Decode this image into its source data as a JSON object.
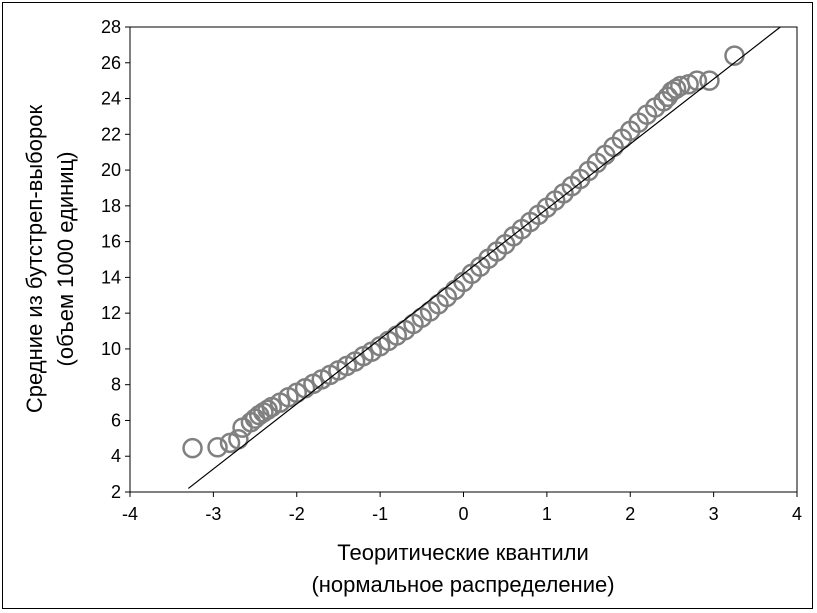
{
  "chart_data": {
    "type": "scatter",
    "title": "",
    "xlabel_lines": [
      "Теоритические квантили",
      "(нормальное распределение)"
    ],
    "ylabel_lines": [
      "Средние из бутстреп-выборок",
      "(объем 1000 единиц)"
    ],
    "xlim": [
      -4,
      4
    ],
    "ylim": [
      2,
      28
    ],
    "x_ticks": [
      -4,
      -3,
      -2,
      -1,
      0,
      1,
      2,
      3,
      4
    ],
    "y_ticks": [
      2,
      4,
      6,
      8,
      10,
      12,
      14,
      16,
      18,
      20,
      22,
      24,
      26,
      28
    ],
    "grid": false,
    "reference_line": {
      "x": [
        -3.3,
        3.8
      ],
      "y": [
        2.2,
        28
      ]
    },
    "series": [
      {
        "marker": "open-circle",
        "color": "#808080",
        "points": [
          [
            -3.25,
            4.45
          ],
          [
            -2.95,
            4.5
          ],
          [
            -2.8,
            4.75
          ],
          [
            -2.7,
            4.95
          ],
          [
            -2.65,
            5.6
          ],
          [
            -2.55,
            5.9
          ],
          [
            -2.5,
            6.1
          ],
          [
            -2.45,
            6.3
          ],
          [
            -2.4,
            6.45
          ],
          [
            -2.35,
            6.6
          ],
          [
            -2.3,
            6.75
          ],
          [
            -2.2,
            7.0
          ],
          [
            -2.1,
            7.3
          ],
          [
            -2.0,
            7.55
          ],
          [
            -1.9,
            7.8
          ],
          [
            -1.8,
            8.05
          ],
          [
            -1.7,
            8.3
          ],
          [
            -1.6,
            8.55
          ],
          [
            -1.5,
            8.8
          ],
          [
            -1.4,
            9.05
          ],
          [
            -1.3,
            9.3
          ],
          [
            -1.2,
            9.6
          ],
          [
            -1.1,
            9.85
          ],
          [
            -1.0,
            10.15
          ],
          [
            -0.9,
            10.45
          ],
          [
            -0.8,
            10.75
          ],
          [
            -0.7,
            11.05
          ],
          [
            -0.6,
            11.4
          ],
          [
            -0.5,
            11.75
          ],
          [
            -0.4,
            12.1
          ],
          [
            -0.3,
            12.5
          ],
          [
            -0.2,
            12.9
          ],
          [
            -0.1,
            13.3
          ],
          [
            0.0,
            13.75
          ],
          [
            0.1,
            14.2
          ],
          [
            0.2,
            14.6
          ],
          [
            0.3,
            15.05
          ],
          [
            0.4,
            15.45
          ],
          [
            0.5,
            15.85
          ],
          [
            0.6,
            16.3
          ],
          [
            0.7,
            16.7
          ],
          [
            0.8,
            17.1
          ],
          [
            0.9,
            17.5
          ],
          [
            1.0,
            17.9
          ],
          [
            1.1,
            18.3
          ],
          [
            1.2,
            18.7
          ],
          [
            1.3,
            19.1
          ],
          [
            1.4,
            19.5
          ],
          [
            1.5,
            19.95
          ],
          [
            1.6,
            20.4
          ],
          [
            1.7,
            20.85
          ],
          [
            1.8,
            21.3
          ],
          [
            1.9,
            21.75
          ],
          [
            2.0,
            22.2
          ],
          [
            2.1,
            22.65
          ],
          [
            2.2,
            23.1
          ],
          [
            2.3,
            23.5
          ],
          [
            2.4,
            23.85
          ],
          [
            2.45,
            24.1
          ],
          [
            2.5,
            24.4
          ],
          [
            2.55,
            24.55
          ],
          [
            2.6,
            24.7
          ],
          [
            2.7,
            24.8
          ],
          [
            2.8,
            25.0
          ],
          [
            2.95,
            25.0
          ],
          [
            3.25,
            26.4
          ]
        ]
      }
    ]
  }
}
